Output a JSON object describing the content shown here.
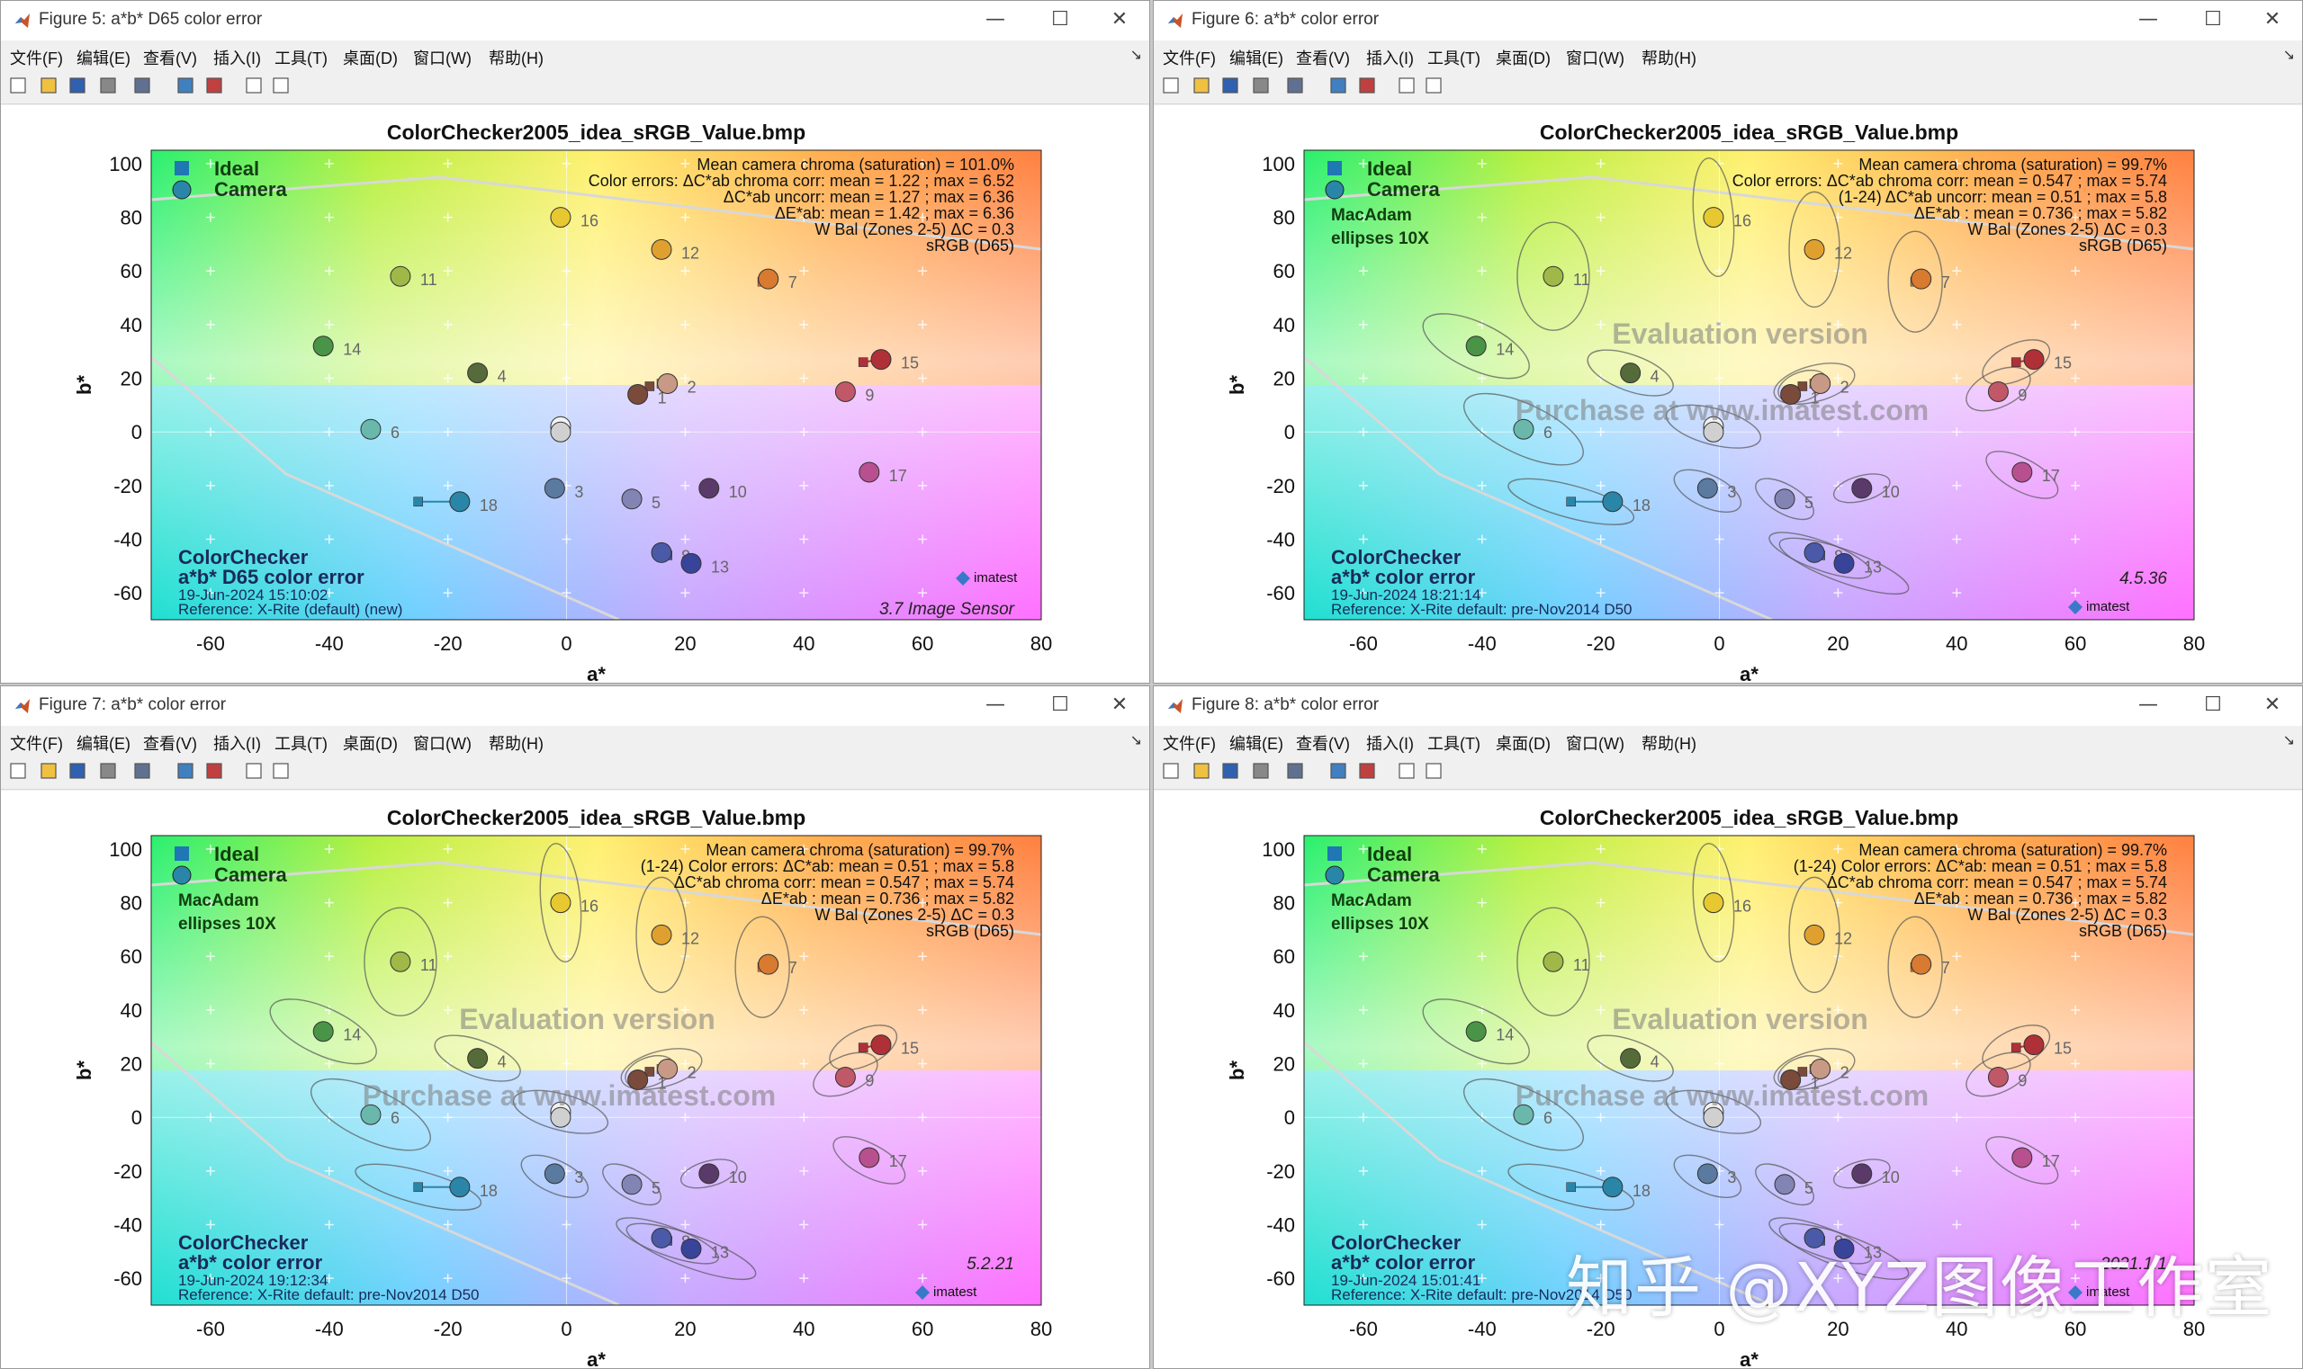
{
  "menu_items": [
    "文件(F)",
    "编辑(E)",
    "查看(V)",
    "插入(I)",
    "工具(T)",
    "桌面(D)",
    "窗口(W)",
    "帮助(H)"
  ],
  "toolbar_icons": [
    "new-file-icon",
    "open-folder-icon",
    "save-icon",
    "print-icon",
    "print-preview-icon",
    "link-icon",
    "insert-colorbar-icon",
    "pointer-icon",
    "property-editor-icon"
  ],
  "shared": {
    "plot_title": "ColorChecker2005_idea_sRGB_Value.bmp",
    "xlabel": "a*",
    "ylabel": "b*",
    "legend_ideal": "Ideal",
    "legend_camera": "Camera",
    "srgb_note": "sRGB (D65)",
    "chart_name": "ColorChecker",
    "eval_line1": "Evaluation version",
    "eval_line2": "Purchase at www.imatest.com",
    "logo_text": "imatest"
  },
  "colors": {
    "title_bar_bg": "#ffffff",
    "menu_bg": "#f0f0f0",
    "ideal_marker": "#1f77b4",
    "macadam_ellipse": "#555555"
  },
  "windows": [
    {
      "title": "Figure 5: a*b* D65 color error",
      "macadam": false,
      "macadam_label1": "",
      "macadam_label2": "",
      "stats": [
        "Mean camera chroma (saturation) = 101.0%",
        "Color errors: ΔC*ab chroma corr:  mean = 1.22 ;  max = 6.52",
        "ΔC*ab uncorr:  mean = 1.27 ;  max = 6.36",
        "ΔE*ab:  mean = 1.42 ;  max = 6.36",
        "W Bal (Zones 2-5) ΔC = 0.3"
      ],
      "cc_line2": "a*b* D65 color error",
      "date": "19-Jun-2024 15:10:02",
      "reference": "Reference: X-Rite (default) (new)",
      "version": "3.7  Image Sensor",
      "evaluation": false
    },
    {
      "title": "Figure 6: a*b* color error",
      "macadam": true,
      "macadam_label1": "MacAdam",
      "macadam_label2": "ellipses 10X",
      "stats": [
        "Mean camera chroma (saturation) = 99.7%",
        "Color errors: ΔC*ab chroma corr:  mean = 0.547 ;  max = 5.74",
        "(1-24)   ΔC*ab uncorr:  mean = 0.51 ;  max = 5.8",
        "ΔE*ab  :  mean = 0.736 ;  max = 5.82",
        "W Bal (Zones 2-5) ΔC = 0.3"
      ],
      "cc_line2": "a*b* color error",
      "date": "19-Jun-2024 18:21:14",
      "reference": "Reference: X-Rite default:  pre-Nov2014  D50",
      "version": "4.5.36",
      "evaluation": true
    },
    {
      "title": "Figure 7: a*b* color error",
      "macadam": true,
      "macadam_label1": "MacAdam",
      "macadam_label2": "ellipses 10X",
      "stats": [
        "Mean camera chroma (saturation) = 99.7%",
        "(1-24)    Color errors:  ΔC*ab:  mean = 0.51 ;  max = 5.8",
        "ΔC*ab chroma corr:  mean = 0.547 ;  max = 5.74",
        "ΔE*ab  :  mean = 0.736 ;  max = 5.82",
        "W Bal (Zones 2-5) ΔC = 0.3"
      ],
      "cc_line2": "a*b* color error",
      "date": "19-Jun-2024 19:12:34",
      "reference": "Reference: X-Rite default:  pre-Nov2014  D50",
      "version": "5.2.21",
      "evaluation": true
    },
    {
      "title": "Figure 8: a*b* color error",
      "macadam": true,
      "macadam_label1": "MacAdam",
      "macadam_label2": "ellipses 10X",
      "stats": [
        "Mean camera chroma (saturation) = 99.7%",
        "(1-24)  Color errors:  ΔC*ab:  mean = 0.51 ;  max = 5.8",
        "ΔC*ab chroma corr:  mean = 0.547 ;  max = 5.74",
        "ΔE*ab  :  mean = 0.736 ;  max = 5.82",
        "W Bal (Zones 2-5) ΔC = 0.3"
      ],
      "cc_line2": "a*b* color error",
      "date": "19-Jun-2024 15:01:41",
      "reference": "Reference: X-Rite default:  pre-Nov2014  D50",
      "version": "2021.1.1",
      "evaluation": true
    }
  ],
  "chart_data": {
    "type": "scatter",
    "xlabel": "a*",
    "ylabel": "b*",
    "xlim": [
      -70,
      80
    ],
    "ylim": [
      -70,
      105
    ],
    "xticks": [
      -60,
      -40,
      -20,
      0,
      20,
      40,
      60,
      80
    ],
    "yticks": [
      -60,
      -40,
      -20,
      0,
      20,
      40,
      60,
      80,
      100
    ],
    "grid": true,
    "legend": "top-left",
    "series": [
      {
        "name": "Ideal"
      },
      {
        "name": "Camera"
      }
    ],
    "patches": [
      {
        "id": "1",
        "ideal": [
          14,
          17
        ],
        "camera": [
          12,
          14
        ],
        "color": "#7a4a3a"
      },
      {
        "id": "2",
        "ideal": [
          16,
          18
        ],
        "camera": [
          17,
          18
        ],
        "color": "#c89a86"
      },
      {
        "id": "3",
        "ideal": [
          -2,
          -22
        ],
        "camera": [
          -2,
          -21
        ],
        "color": "#5a7aa0"
      },
      {
        "id": "4",
        "ideal": [
          -15,
          22
        ],
        "camera": [
          -15,
          22
        ],
        "color": "#566b3a"
      },
      {
        "id": "5",
        "ideal": [
          11,
          -25
        ],
        "camera": [
          11,
          -25
        ],
        "color": "#8284b4"
      },
      {
        "id": "6",
        "ideal": [
          -33,
          1
        ],
        "camera": [
          -33,
          1
        ],
        "color": "#6ab8ac"
      },
      {
        "id": "7",
        "ideal": [
          33,
          56
        ],
        "camera": [
          34,
          57
        ],
        "color": "#d87a30"
      },
      {
        "id": "8",
        "ideal": [
          17,
          -46
        ],
        "camera": [
          16,
          -45
        ],
        "color": "#4a5aa8"
      },
      {
        "id": "9",
        "ideal": [
          47,
          16
        ],
        "camera": [
          47,
          15
        ],
        "color": "#c05868"
      },
      {
        "id": "10",
        "ideal": [
          24,
          -21
        ],
        "camera": [
          24,
          -21
        ],
        "color": "#5a3a68"
      },
      {
        "id": "11",
        "ideal": [
          -28,
          58
        ],
        "camera": [
          -28,
          58
        ],
        "color": "#a0b848"
      },
      {
        "id": "12",
        "ideal": [
          16,
          68
        ],
        "camera": [
          16,
          68
        ],
        "color": "#e0a030"
      },
      {
        "id": "13",
        "ideal": [
          21,
          -50
        ],
        "camera": [
          21,
          -49
        ],
        "color": "#38449a"
      },
      {
        "id": "14",
        "ideal": [
          -41,
          32
        ],
        "camera": [
          -41,
          32
        ],
        "color": "#4a9448"
      },
      {
        "id": "15",
        "ideal": [
          50,
          26
        ],
        "camera": [
          53,
          27
        ],
        "color": "#b03038"
      },
      {
        "id": "16",
        "ideal": [
          -1,
          80
        ],
        "camera": [
          -1,
          80
        ],
        "color": "#e8c830"
      },
      {
        "id": "17",
        "ideal": [
          51,
          -16
        ],
        "camera": [
          51,
          -15
        ],
        "color": "#b85090"
      },
      {
        "id": "18",
        "ideal": [
          -25,
          -26
        ],
        "camera": [
          -18,
          -26
        ],
        "color": "#2a86a8"
      },
      {
        "id": "19",
        "ideal": [
          -1,
          2
        ],
        "camera": [
          -1,
          2
        ],
        "color": "#f2f2f2"
      },
      {
        "id": "20",
        "ideal": [
          -1,
          1
        ],
        "camera": [
          -1,
          0
        ],
        "color": "#d0d0d0"
      }
    ]
  },
  "watermark": "知乎 @XYZ图像工作室"
}
